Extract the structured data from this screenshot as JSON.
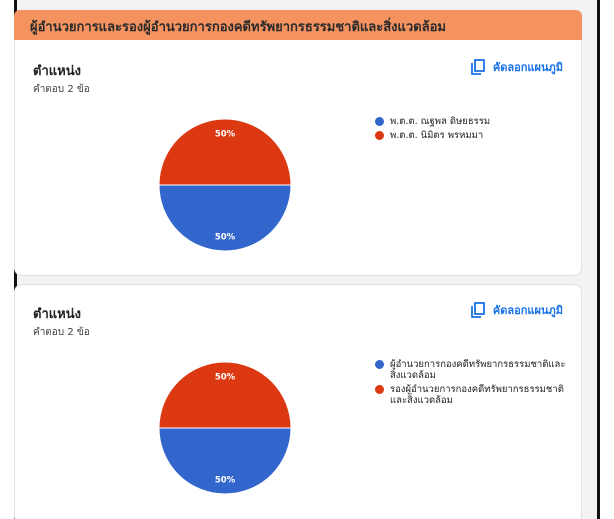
{
  "section": {
    "title": "ผู้อำนวยการและรองผู้อำนวยการกองคดีทรัพยากรธรรมชาติและสิ่งแวดล้อม"
  },
  "colors": {
    "header_bar": "#f4935f",
    "series_blue": "#3366cc",
    "series_red": "#dc3912",
    "link": "#1a73e8"
  },
  "cards": [
    {
      "question": "ตำแหน่ง",
      "response_count": "คำตอบ 2 ข้อ",
      "copy_label": "คัดลอกแผนภูมิ",
      "copy_icon": "copy-icon",
      "legend": [
        "พ.ต.ต. ณฐพล ดิษยธรรม",
        "พ.ต.ต. นิมิตร พรหมมา"
      ],
      "slice_labels": [
        "50%",
        "50%"
      ]
    },
    {
      "question": "ตำแหน่ง",
      "response_count": "คำตอบ 2 ข้อ",
      "copy_label": "คัดลอกแผนภูมิ",
      "copy_icon": "copy-icon",
      "legend": [
        "ผู้อำนวยการกองคดีทรัพยากรธรรมชาติและสิ่งแวดล้อม",
        "รองผู้อำนวยการกองคดีทรัพยากรธรรมชาติและสิ่งแวดล้อม"
      ],
      "slice_labels": [
        "50%",
        "50%"
      ]
    }
  ],
  "chart_data": [
    {
      "type": "pie",
      "categories": [
        "พ.ต.ต. ณฐพล ดิษยธรรม",
        "พ.ต.ต. นิมิตร พรหมมา"
      ],
      "values": [
        50,
        50
      ],
      "legend_position": "right"
    },
    {
      "type": "pie",
      "categories": [
        "ผู้อำนวยการกองคดีทรัพยากรธรรมชาติและสิ่งแวดล้อม",
        "รองผู้อำนวยการกองคดีทรัพยากรธรรมชาติและสิ่งแวดล้อม"
      ],
      "values": [
        50,
        50
      ],
      "legend_position": "right"
    }
  ]
}
